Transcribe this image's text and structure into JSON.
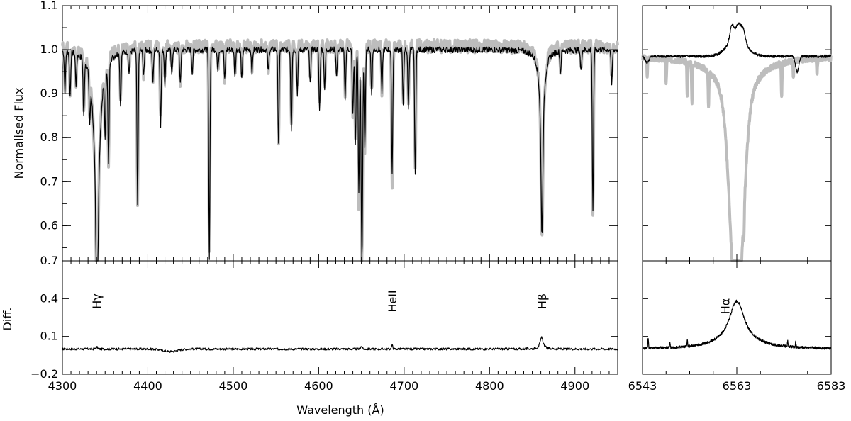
{
  "figure": {
    "xlabel": "Wavelength (Å)",
    "ylabel_top": "Normalised Flux",
    "ylabel_bottom": "Diff."
  },
  "chart_data": [
    {
      "type": "line",
      "panel": "left-top",
      "xlim": [
        4300,
        4950
      ],
      "ylim": [
        0.52,
        1.1
      ],
      "yticks": [
        0.6,
        0.7,
        0.8,
        0.9,
        1.0,
        1.1
      ],
      "ytick_labels": [
        "0.6",
        "0.7",
        "0.8",
        "0.9",
        "1.0",
        "1.1"
      ],
      "continuum": 1.0,
      "lines": [
        {
          "x": 4303,
          "depth": 0.09
        },
        {
          "x": 4309,
          "depth": 0.1
        },
        {
          "x": 4316,
          "depth": 0.07
        },
        {
          "x": 4325,
          "depth": 0.13
        },
        {
          "x": 4332,
          "depth": 0.1
        },
        {
          "x": 4350,
          "depth": 0.14
        },
        {
          "x": 4354,
          "depth": 0.23
        },
        {
          "x": 4368,
          "depth": 0.12
        },
        {
          "x": 4378,
          "depth": 0.05
        },
        {
          "x": 4388,
          "depth": 0.35
        },
        {
          "x": 4395,
          "depth": 0.06
        },
        {
          "x": 4406,
          "depth": 0.07
        },
        {
          "x": 4415,
          "depth": 0.17
        },
        {
          "x": 4420,
          "depth": 0.08
        },
        {
          "x": 4428,
          "depth": 0.06
        },
        {
          "x": 4438,
          "depth": 0.08
        },
        {
          "x": 4452,
          "depth": 0.05
        },
        {
          "x": 4472,
          "depth": 0.47
        },
        {
          "x": 4482,
          "depth": 0.05
        },
        {
          "x": 4490,
          "depth": 0.07
        },
        {
          "x": 4502,
          "depth": 0.06
        },
        {
          "x": 4510,
          "depth": 0.07
        },
        {
          "x": 4522,
          "depth": 0.05
        },
        {
          "x": 4541,
          "depth": 0.05
        },
        {
          "x": 4553,
          "depth": 0.21
        },
        {
          "x": 4568,
          "depth": 0.18
        },
        {
          "x": 4575,
          "depth": 0.1
        },
        {
          "x": 4590,
          "depth": 0.08
        },
        {
          "x": 4601,
          "depth": 0.14
        },
        {
          "x": 4607,
          "depth": 0.09
        },
        {
          "x": 4621,
          "depth": 0.06
        },
        {
          "x": 4631,
          "depth": 0.11
        },
        {
          "x": 4640,
          "depth": 0.15
        },
        {
          "x": 4643,
          "depth": 0.22
        },
        {
          "x": 4647,
          "depth": 0.33
        },
        {
          "x": 4650,
          "depth": 0.26
        },
        {
          "x": 4651,
          "depth": 0.35
        },
        {
          "x": 4654,
          "depth": 0.23
        },
        {
          "x": 4662,
          "depth": 0.1
        },
        {
          "x": 4674,
          "depth": 0.1
        },
        {
          "x": 4686,
          "depth": 0.28
        },
        {
          "x": 4699,
          "depth": 0.12
        },
        {
          "x": 4705,
          "depth": 0.13
        },
        {
          "x": 4713,
          "depth": 0.29
        },
        {
          "x": 4861,
          "depth": 0.35
        },
        {
          "x": 4883,
          "depth": 0.05
        },
        {
          "x": 4907,
          "depth": 0.05
        },
        {
          "x": 4921,
          "depth": 0.37
        },
        {
          "x": 4943,
          "depth": 0.08
        }
      ],
      "broad_lines": [
        {
          "x": 4340.5,
          "depth": 0.38,
          "width": 9
        },
        {
          "x": 4861.3,
          "depth": 0.1,
          "width": 8
        }
      ],
      "series": [
        {
          "role": "observed",
          "color": "#bdbdbd"
        },
        {
          "role": "model",
          "color": "#000000"
        }
      ]
    },
    {
      "type": "line",
      "panel": "left-bottom",
      "xlim": [
        4300,
        4950
      ],
      "xticks": [
        4300,
        4400,
        4500,
        4600,
        4700,
        4800,
        4900
      ],
      "xtick_labels": [
        "4300",
        "4400",
        "4500",
        "4600",
        "4700",
        "4800",
        "4900"
      ],
      "ylim": [
        -0.2,
        0.7
      ],
      "yticks": [
        -0.2,
        0.1,
        0.4,
        0.7
      ],
      "ytick_labels": [
        "−0.2",
        "0.1",
        "0.4",
        "0.7"
      ],
      "baseline": 0.0,
      "features": [
        {
          "x": 4340,
          "height": 0.02
        },
        {
          "x": 4426,
          "height": -0.02
        },
        {
          "x": 4686,
          "height": 0.03
        },
        {
          "x": 4861,
          "height": 0.09
        }
      ],
      "annotations": [
        {
          "x": 4340,
          "label": "Hγ"
        },
        {
          "x": 4686,
          "label": "HeII"
        },
        {
          "x": 4861,
          "label": "Hβ"
        }
      ]
    },
    {
      "type": "line",
      "panel": "right-top",
      "xlim": [
        6543,
        6583
      ],
      "ylim": [
        0.52,
        1.1
      ],
      "yticks": [
        0.6,
        0.7,
        0.8,
        0.9,
        1.0,
        1.1
      ],
      "observed": {
        "continuum": 0.985,
        "absorption": {
          "x": 6563,
          "depth": 0.44,
          "width": 1.3,
          "wing_depth": 0.1,
          "wing_width": 4
        },
        "telluric": [
          {
            "x": 6544,
            "depth": 0.04
          },
          {
            "x": 6548,
            "depth": 0.06
          },
          {
            "x": 6552.5,
            "depth": 0.08
          },
          {
            "x": 6553.5,
            "depth": 0.09
          },
          {
            "x": 6557,
            "depth": 0.08
          },
          {
            "x": 6564.5,
            "depth": 0.06
          },
          {
            "x": 6572.5,
            "depth": 0.08
          },
          {
            "x": 6575,
            "depth": 0.04
          },
          {
            "x": 6580,
            "depth": 0.04
          }
        ]
      },
      "model": {
        "continuum": 0.985,
        "dip": {
          "x": 6575.8,
          "depth": 0.035
        },
        "emission_peaks": [
          {
            "x": 6562,
            "height": 0.065
          },
          {
            "x": 6563.3,
            "height": 0.06
          },
          {
            "x": 6564.3,
            "height": 0.055
          }
        ]
      }
    },
    {
      "type": "line",
      "panel": "right-bottom",
      "xlim": [
        6543,
        6583
      ],
      "xticks": [
        6543,
        6563,
        6583
      ],
      "xtick_labels": [
        "6543",
        "6563",
        "6583"
      ],
      "ylim": [
        -0.2,
        0.7
      ],
      "peak": {
        "x": 6563,
        "height": 0.38
      },
      "spikes": [
        6544.2,
        6548.8,
        6552.5,
        6573.8,
        6575.5
      ],
      "annotations": [
        {
          "x": 6560.5,
          "label": "Hα"
        }
      ]
    }
  ]
}
